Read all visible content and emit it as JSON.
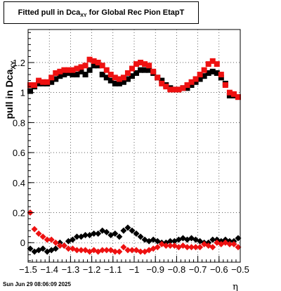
{
  "title": {
    "prefix": "Fitted pull in Dca",
    "subscript": "XY",
    "suffix": " for Global Rec Pion EtapT"
  },
  "timestamp": "Sun Jun 29 08:06:09 2025",
  "colors": {
    "series_black": "#000000",
    "series_red": "#ee1111",
    "grid": "#000000"
  },
  "chart_data": {
    "type": "scatter",
    "title": "Fitted pull in Dca XY for Global Rec Pion EtapT",
    "xlabel": "η",
    "ylabel": "pull in Dca",
    "ylabel_subscript": "XY",
    "xlim": [
      -1.5,
      -0.5
    ],
    "ylim": [
      -0.13,
      1.42
    ],
    "x_ticks": [
      -1.5,
      -1.4,
      -1.3,
      -1.2,
      -1.1,
      -1.0,
      -0.9,
      -0.8,
      -0.7,
      -0.6,
      -0.5
    ],
    "x_tick_labels": [
      "−1.5",
      "−1.4",
      "−1.3",
      "−1.2",
      "−1.1",
      "−1",
      "−0.9",
      "−0.8",
      "−0.7",
      "−0.6",
      "−0.5"
    ],
    "y_ticks": [
      0,
      0.2,
      0.4,
      0.6,
      0.8,
      1.0,
      1.2
    ],
    "y_tick_labels": [
      "0",
      "0.2",
      "0.4",
      "0.6",
      "0.8",
      "1",
      "1.2"
    ],
    "grid": true,
    "series": [
      {
        "marker": "square",
        "color": "#000000",
        "x": [
          -1.49,
          -1.47,
          -1.45,
          -1.43,
          -1.41,
          -1.39,
          -1.37,
          -1.35,
          -1.33,
          -1.31,
          -1.29,
          -1.27,
          -1.25,
          -1.23,
          -1.21,
          -1.19,
          -1.17,
          -1.15,
          -1.13,
          -1.11,
          -1.09,
          -1.07,
          -1.05,
          -1.03,
          -1.01,
          -0.99,
          -0.97,
          -0.95,
          -0.93,
          -0.91,
          -0.89,
          -0.87,
          -0.85,
          -0.83,
          -0.81,
          -0.79,
          -0.77,
          -0.75,
          -0.73,
          -0.71,
          -0.69,
          -0.67,
          -0.65,
          -0.63,
          -0.61,
          -0.59,
          -0.57,
          -0.55,
          -0.53,
          -0.51
        ],
        "y": [
          1.01,
          1.04,
          1.06,
          1.06,
          1.06,
          1.07,
          1.09,
          1.11,
          1.12,
          1.13,
          1.12,
          1.12,
          1.14,
          1.12,
          1.15,
          1.18,
          1.18,
          1.12,
          1.1,
          1.08,
          1.06,
          1.06,
          1.07,
          1.09,
          1.11,
          1.13,
          1.15,
          1.15,
          1.15,
          1.13,
          1.1,
          1.08,
          1.05,
          1.03,
          1.02,
          1.02,
          1.03,
          1.03,
          1.05,
          1.07,
          1.09,
          1.11,
          1.13,
          1.14,
          1.13,
          1.1,
          1.06,
          0.98,
          0.98,
          0.97
        ]
      },
      {
        "marker": "square",
        "color": "#ee1111",
        "x": [
          -1.49,
          -1.47,
          -1.45,
          -1.43,
          -1.41,
          -1.39,
          -1.37,
          -1.35,
          -1.33,
          -1.31,
          -1.29,
          -1.27,
          -1.25,
          -1.23,
          -1.21,
          -1.19,
          -1.17,
          -1.15,
          -1.13,
          -1.11,
          -1.09,
          -1.07,
          -1.05,
          -1.03,
          -1.01,
          -0.99,
          -0.97,
          -0.95,
          -0.93,
          -0.91,
          -0.89,
          -0.87,
          -0.85,
          -0.83,
          -0.81,
          -0.79,
          -0.77,
          -0.75,
          -0.73,
          -0.71,
          -0.69,
          -0.67,
          -0.65,
          -0.63,
          -0.61,
          -0.59,
          -0.57,
          -0.55,
          -0.53,
          -0.51
        ],
        "y": [
          1.05,
          1.05,
          1.08,
          1.07,
          1.07,
          1.1,
          1.13,
          1.14,
          1.15,
          1.15,
          1.15,
          1.16,
          1.17,
          1.18,
          1.22,
          1.21,
          1.2,
          1.18,
          1.15,
          1.12,
          1.1,
          1.09,
          1.1,
          1.13,
          1.16,
          1.19,
          1.2,
          1.19,
          1.18,
          1.14,
          1.1,
          1.06,
          1.04,
          1.02,
          1.02,
          1.02,
          1.03,
          1.05,
          1.07,
          1.09,
          1.12,
          1.15,
          1.19,
          1.21,
          1.19,
          1.12,
          1.05,
          1.0,
          0.99,
          0.97
        ]
      },
      {
        "marker": "diamond",
        "color": "#000000",
        "x": [
          -1.49,
          -1.47,
          -1.45,
          -1.43,
          -1.41,
          -1.39,
          -1.37,
          -1.35,
          -1.33,
          -1.31,
          -1.29,
          -1.27,
          -1.25,
          -1.23,
          -1.21,
          -1.19,
          -1.17,
          -1.15,
          -1.13,
          -1.11,
          -1.09,
          -1.07,
          -1.05,
          -1.03,
          -1.01,
          -0.99,
          -0.97,
          -0.95,
          -0.93,
          -0.91,
          -0.89,
          -0.87,
          -0.85,
          -0.83,
          -0.81,
          -0.79,
          -0.77,
          -0.75,
          -0.73,
          -0.71,
          -0.69,
          -0.67,
          -0.65,
          -0.63,
          -0.61,
          -0.59,
          -0.57,
          -0.55,
          -0.53,
          -0.51
        ],
        "y": [
          -0.04,
          -0.06,
          -0.05,
          -0.04,
          -0.06,
          -0.05,
          -0.04,
          0.0,
          -0.02,
          0.01,
          0.02,
          0.04,
          0.04,
          0.05,
          0.05,
          0.06,
          0.06,
          0.08,
          0.07,
          0.05,
          0.06,
          0.04,
          0.08,
          0.1,
          0.08,
          0.06,
          0.04,
          0.02,
          0.01,
          0.02,
          0.01,
          0.0,
          0.0,
          0.01,
          0.01,
          0.02,
          0.03,
          0.02,
          0.03,
          0.02,
          0.01,
          0.0,
          0.0,
          0.02,
          0.02,
          0.01,
          0.02,
          0.01,
          0.01,
          0.03
        ]
      },
      {
        "marker": "diamond",
        "color": "#ee1111",
        "x": [
          -1.49,
          -1.47,
          -1.45,
          -1.43,
          -1.41,
          -1.39,
          -1.37,
          -1.35,
          -1.33,
          -1.31,
          -1.29,
          -1.27,
          -1.25,
          -1.23,
          -1.21,
          -1.19,
          -1.17,
          -1.15,
          -1.13,
          -1.11,
          -1.09,
          -1.07,
          -1.05,
          -1.03,
          -1.01,
          -0.99,
          -0.97,
          -0.95,
          -0.93,
          -0.91,
          -0.89,
          -0.87,
          -0.85,
          -0.83,
          -0.81,
          -0.79,
          -0.77,
          -0.75,
          -0.73,
          -0.71,
          -0.69,
          -0.67,
          -0.65,
          -0.63,
          -0.61,
          -0.59,
          -0.57,
          -0.55,
          -0.53,
          -0.51
        ],
        "y": [
          0.2,
          0.09,
          0.06,
          0.04,
          0.02,
          0.02,
          0.0,
          -0.02,
          -0.02,
          -0.04,
          -0.04,
          -0.05,
          -0.05,
          -0.05,
          -0.06,
          -0.05,
          -0.06,
          -0.05,
          -0.05,
          -0.05,
          -0.06,
          -0.06,
          -0.03,
          -0.05,
          -0.05,
          -0.05,
          -0.06,
          -0.06,
          -0.05,
          -0.04,
          -0.03,
          -0.01,
          -0.02,
          -0.02,
          -0.02,
          -0.03,
          -0.02,
          -0.03,
          -0.03,
          -0.03,
          -0.03,
          -0.01,
          -0.02,
          -0.03,
          0.0,
          -0.01,
          0.0,
          -0.01,
          -0.01,
          -0.03
        ]
      }
    ]
  }
}
